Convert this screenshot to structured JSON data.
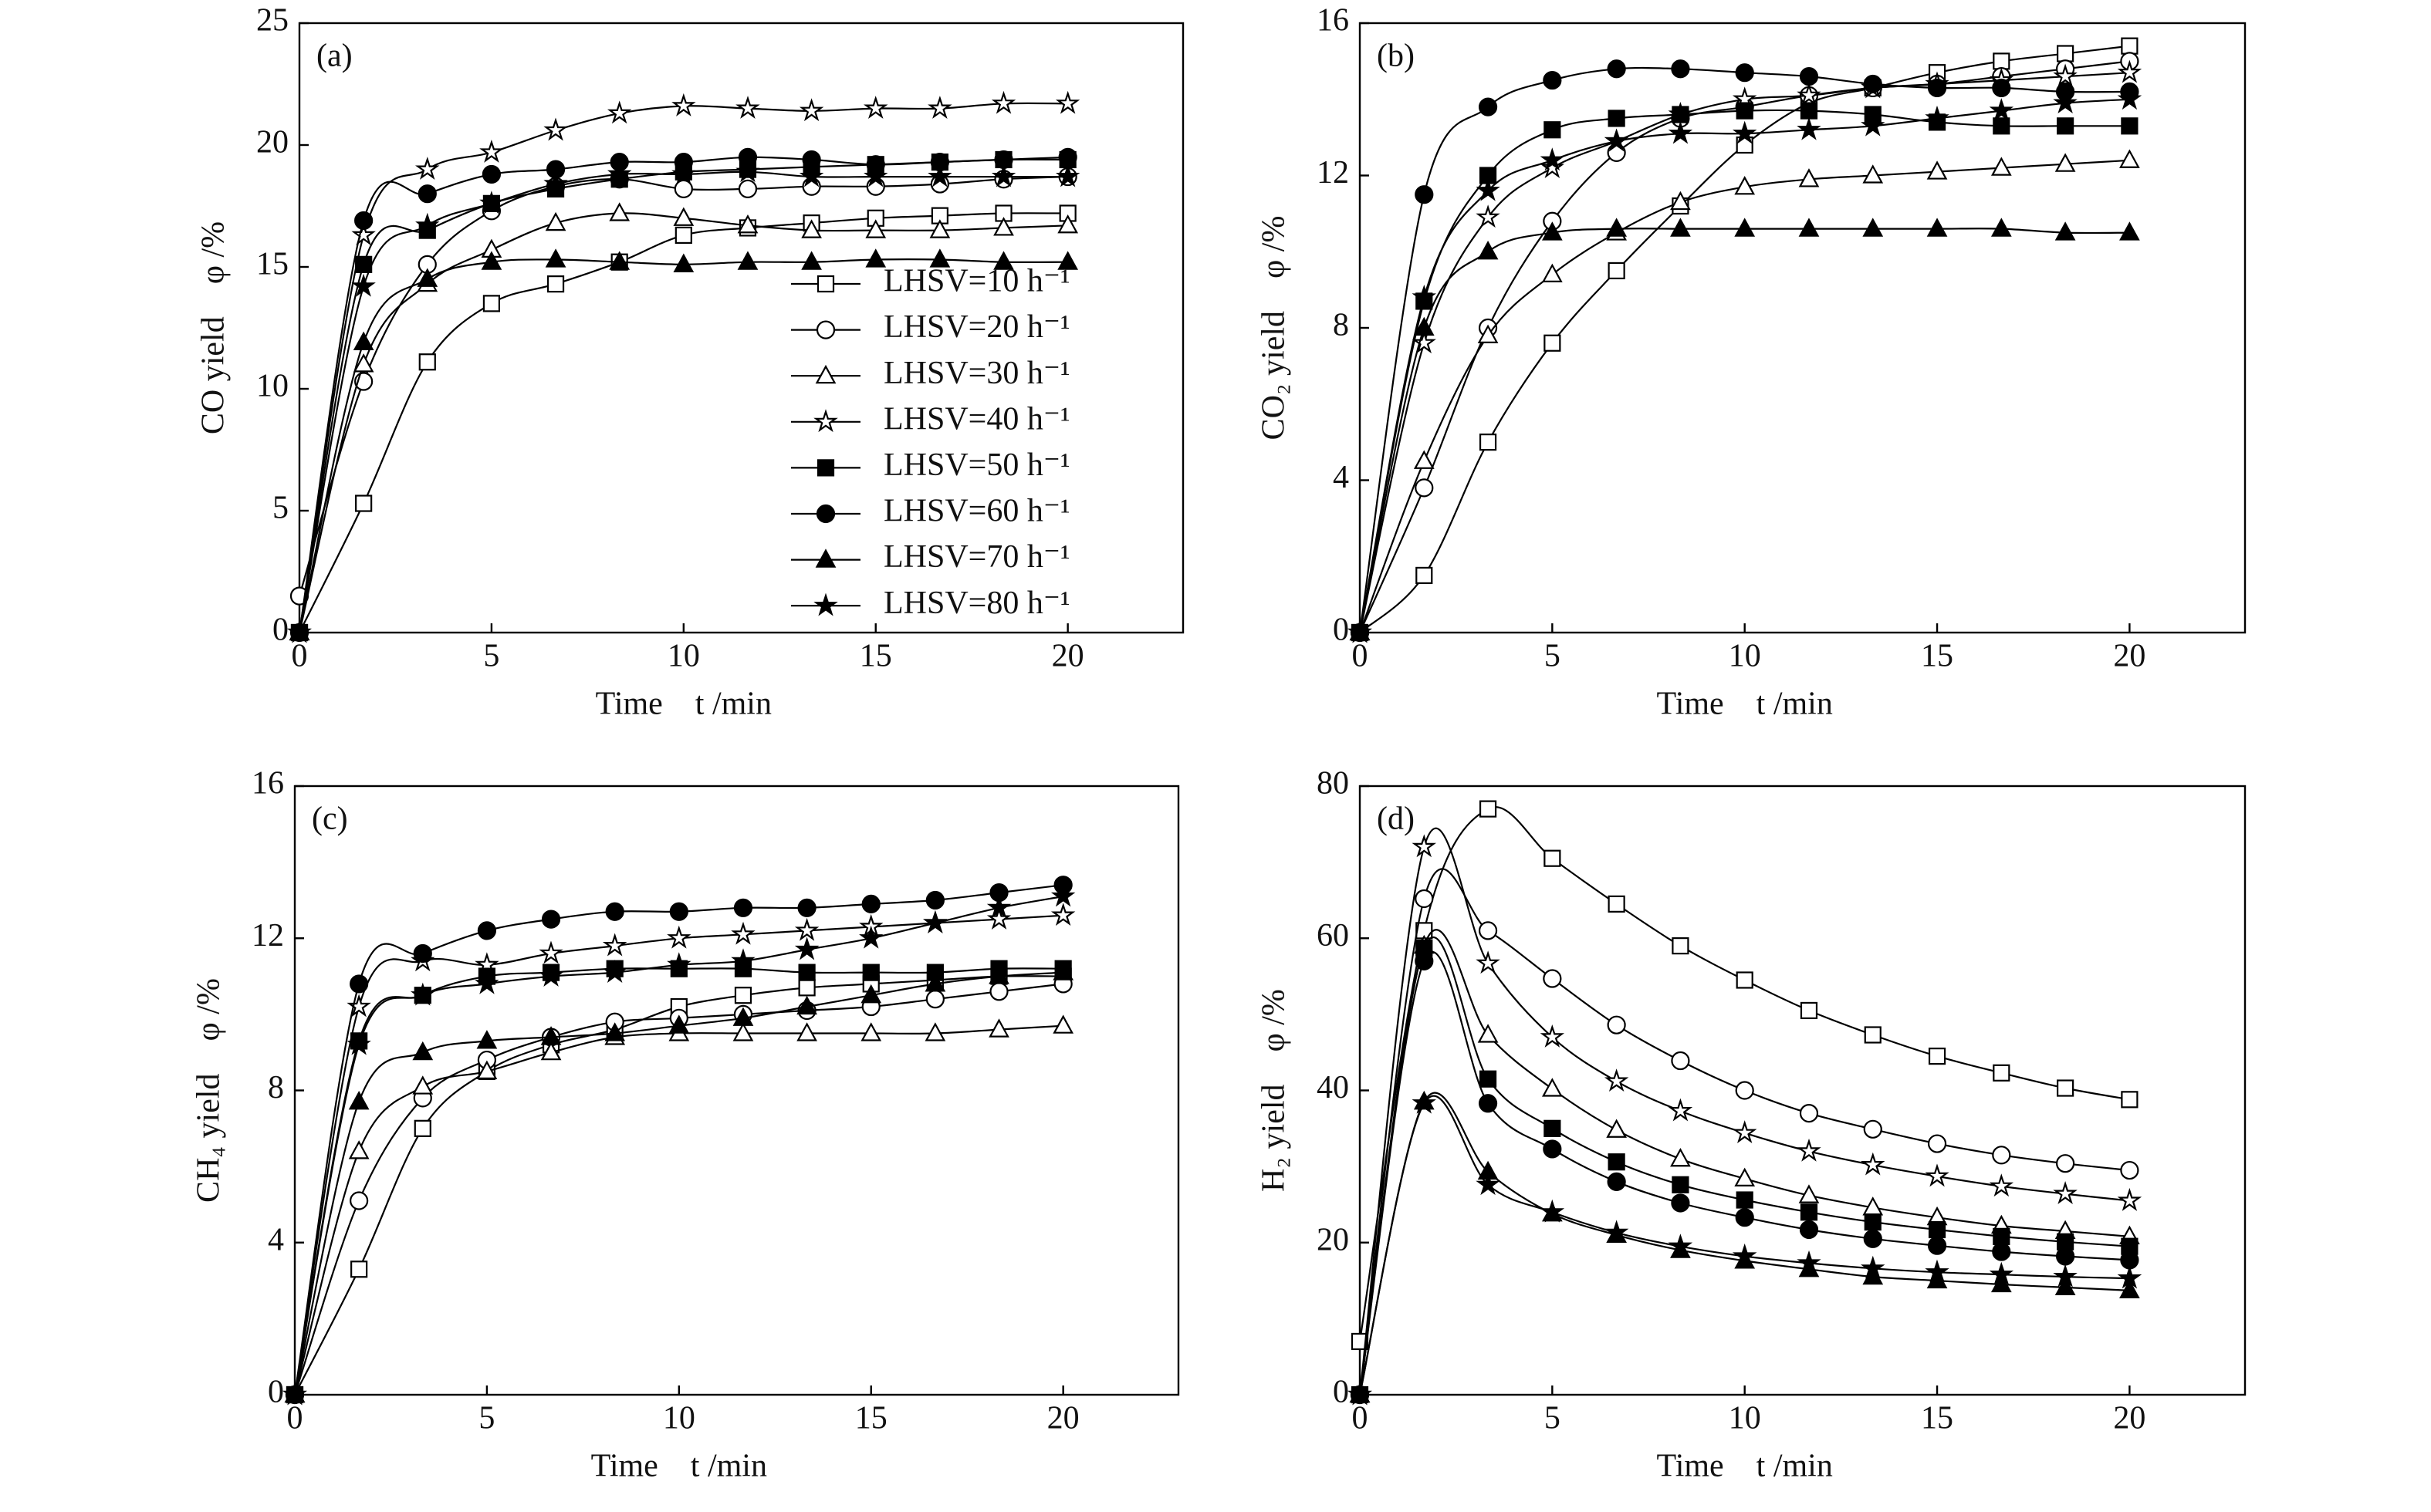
{
  "chart_data": [
    {
      "type": "line",
      "title": "(a)",
      "xlabel": "Time    t /min",
      "ylabel": "CO yield    φ /%",
      "color": "#000000",
      "legend": "right",
      "x": [
        0,
        1.67,
        3.33,
        5,
        6.67,
        8.33,
        10,
        11.67,
        13.33,
        15,
        16.67,
        18.33,
        20
      ],
      "xlim": [
        0,
        23
      ],
      "xticks": [
        0,
        5,
        10,
        15,
        20
      ],
      "ylim": [
        0,
        25
      ],
      "yticks": [
        0,
        5,
        10,
        15,
        20,
        25
      ],
      "series": [
        {
          "name": "LHSV=10 h⁻¹",
          "marker": "square",
          "filled": false,
          "values": [
            0,
            5.3,
            11.1,
            13.5,
            14.3,
            15.2,
            16.3,
            16.6,
            16.8,
            17.0,
            17.1,
            17.2,
            17.2
          ]
        },
        {
          "name": "LHSV=20 h⁻¹",
          "marker": "circle",
          "filled": false,
          "values": [
            1.5,
            10.3,
            15.1,
            17.3,
            18.3,
            18.6,
            18.2,
            18.2,
            18.3,
            18.3,
            18.4,
            18.6,
            18.7
          ]
        },
        {
          "name": "LHSV=30 h⁻¹",
          "marker": "triangle",
          "filled": false,
          "values": [
            0,
            11,
            14.3,
            15.7,
            16.8,
            17.2,
            17.0,
            16.7,
            16.5,
            16.5,
            16.5,
            16.6,
            16.7
          ]
        },
        {
          "name": "LHSV=40 h⁻¹",
          "marker": "star",
          "filled": false,
          "values": [
            0,
            16.3,
            19.0,
            19.7,
            20.6,
            21.3,
            21.6,
            21.5,
            21.4,
            21.5,
            21.5,
            21.7,
            21.7
          ]
        },
        {
          "name": "LHSV=50 h⁻¹",
          "marker": "square",
          "filled": true,
          "values": [
            0,
            15.1,
            16.5,
            17.6,
            18.2,
            18.6,
            18.9,
            19.0,
            19.1,
            19.2,
            19.3,
            19.4,
            19.4
          ]
        },
        {
          "name": "LHSV=60 h⁻¹",
          "marker": "circle",
          "filled": true,
          "values": [
            0,
            16.9,
            18.0,
            18.8,
            19.0,
            19.3,
            19.3,
            19.5,
            19.4,
            19.2,
            19.3,
            19.4,
            19.5
          ]
        },
        {
          "name": "LHSV=70 h⁻¹",
          "marker": "triangle",
          "filled": true,
          "values": [
            0,
            11.9,
            14.5,
            15.2,
            15.3,
            15.2,
            15.1,
            15.2,
            15.2,
            15.3,
            15.3,
            15.2,
            15.2
          ]
        },
        {
          "name": "LHSV=80 h⁻¹",
          "marker": "star",
          "filled": true,
          "values": [
            0,
            14.2,
            16.7,
            17.6,
            18.4,
            18.8,
            18.8,
            18.9,
            18.7,
            18.7,
            18.7,
            18.7,
            18.7
          ]
        }
      ]
    },
    {
      "type": "line",
      "title": "(b)",
      "xlabel": "Time    t /min",
      "ylabel": "CO₂ yield    φ /%",
      "color": "#000000",
      "x": [
        0,
        1.67,
        3.33,
        5,
        6.67,
        8.33,
        10,
        11.67,
        13.33,
        15,
        16.67,
        18.33,
        20
      ],
      "xlim": [
        0,
        23
      ],
      "xticks": [
        0,
        5,
        10,
        15,
        20
      ],
      "ylim": [
        0,
        16
      ],
      "yticks": [
        0,
        4,
        8,
        12,
        16
      ],
      "series": [
        {
          "marker": "square",
          "filled": false,
          "values": [
            0,
            1.5,
            5.0,
            7.6,
            9.5,
            11.2,
            12.8,
            13.9,
            14.3,
            14.7,
            15.0,
            15.2,
            15.4
          ]
        },
        {
          "marker": "circle",
          "filled": false,
          "values": [
            0,
            3.8,
            8.0,
            10.8,
            12.6,
            13.5,
            13.8,
            14.1,
            14.3,
            14.4,
            14.6,
            14.8,
            15.0
          ]
        },
        {
          "marker": "triangle",
          "filled": false,
          "values": [
            0,
            4.5,
            7.8,
            9.4,
            10.5,
            11.3,
            11.7,
            11.9,
            12.0,
            12.1,
            12.2,
            12.3,
            12.4
          ]
        },
        {
          "marker": "star",
          "filled": false,
          "values": [
            0,
            7.6,
            10.9,
            12.2,
            12.9,
            13.6,
            14.0,
            14.1,
            14.3,
            14.4,
            14.5,
            14.6,
            14.7
          ]
        },
        {
          "marker": "square",
          "filled": true,
          "values": [
            0,
            8.7,
            12.0,
            13.2,
            13.5,
            13.6,
            13.7,
            13.7,
            13.6,
            13.4,
            13.3,
            13.3,
            13.3
          ]
        },
        {
          "marker": "circle",
          "filled": true,
          "values": [
            0,
            11.5,
            13.8,
            14.5,
            14.8,
            14.8,
            14.7,
            14.6,
            14.4,
            14.3,
            14.3,
            14.2,
            14.2
          ]
        },
        {
          "marker": "triangle",
          "filled": true,
          "values": [
            0,
            8.0,
            10.0,
            10.5,
            10.6,
            10.6,
            10.6,
            10.6,
            10.6,
            10.6,
            10.6,
            10.5,
            10.5
          ]
        },
        {
          "marker": "star",
          "filled": true,
          "values": [
            0,
            8.8,
            11.6,
            12.4,
            12.9,
            13.1,
            13.1,
            13.2,
            13.3,
            13.5,
            13.7,
            13.9,
            14.0
          ]
        }
      ]
    },
    {
      "type": "line",
      "title": "(c)",
      "xlabel": "Time    t /min",
      "ylabel": "CH₄ yield    φ /%",
      "color": "#000000",
      "x": [
        0,
        1.67,
        3.33,
        5,
        6.67,
        8.33,
        10,
        11.67,
        13.33,
        15,
        16.67,
        18.33,
        20
      ],
      "xlim": [
        0,
        23
      ],
      "xticks": [
        0,
        5,
        10,
        15,
        20
      ],
      "ylim": [
        0,
        16
      ],
      "yticks": [
        0,
        4,
        8,
        12,
        16
      ],
      "series": [
        {
          "marker": "square",
          "filled": false,
          "values": [
            0,
            3.3,
            7.0,
            8.5,
            9.2,
            9.6,
            10.2,
            10.5,
            10.7,
            10.8,
            10.9,
            11.0,
            11.0
          ]
        },
        {
          "marker": "circle",
          "filled": false,
          "values": [
            0,
            5.1,
            7.8,
            8.8,
            9.4,
            9.8,
            9.9,
            10.0,
            10.1,
            10.2,
            10.4,
            10.6,
            10.8
          ]
        },
        {
          "marker": "triangle",
          "filled": false,
          "values": [
            0,
            6.4,
            8.1,
            8.5,
            9.0,
            9.4,
            9.5,
            9.5,
            9.5,
            9.5,
            9.5,
            9.6,
            9.7
          ]
        },
        {
          "marker": "star",
          "filled": false,
          "values": [
            0,
            10.2,
            11.4,
            11.3,
            11.6,
            11.8,
            12.0,
            12.1,
            12.2,
            12.3,
            12.4,
            12.5,
            12.6
          ]
        },
        {
          "marker": "square",
          "filled": true,
          "values": [
            0,
            9.3,
            10.5,
            11.0,
            11.1,
            11.2,
            11.2,
            11.2,
            11.1,
            11.1,
            11.1,
            11.2,
            11.2
          ]
        },
        {
          "marker": "circle",
          "filled": true,
          "values": [
            0,
            10.8,
            11.6,
            12.2,
            12.5,
            12.7,
            12.7,
            12.8,
            12.8,
            12.9,
            13.0,
            13.2,
            13.4
          ]
        },
        {
          "marker": "triangle",
          "filled": true,
          "values": [
            0,
            7.7,
            9.0,
            9.3,
            9.4,
            9.5,
            9.7,
            9.9,
            10.2,
            10.5,
            10.8,
            11.0,
            11.1
          ]
        },
        {
          "marker": "star",
          "filled": true,
          "values": [
            0,
            9.2,
            10.5,
            10.8,
            11.0,
            11.1,
            11.3,
            11.4,
            11.7,
            12.0,
            12.4,
            12.8,
            13.1
          ]
        }
      ]
    },
    {
      "type": "line",
      "title": "(d)",
      "xlabel": "Time    t /min",
      "ylabel": "H₂ yield    φ /%",
      "color": "#000000",
      "x": [
        0,
        1.67,
        3.33,
        5,
        6.67,
        8.33,
        10,
        11.67,
        13.33,
        15,
        16.67,
        18.33,
        20
      ],
      "xlim": [
        0,
        23
      ],
      "xticks": [
        0,
        5,
        10,
        15,
        20
      ],
      "ylim": [
        0,
        80
      ],
      "yticks": [
        0,
        20,
        40,
        60,
        80
      ],
      "series": [
        {
          "marker": "square",
          "filled": false,
          "values": [
            7,
            61,
            77,
            70.5,
            64.5,
            59,
            54.5,
            50.5,
            47.3,
            44.5,
            42.3,
            40.3,
            38.8
          ]
        },
        {
          "marker": "circle",
          "filled": false,
          "values": [
            0,
            65.2,
            61,
            54.7,
            48.6,
            43.9,
            40,
            37,
            34.9,
            33,
            31.5,
            30.4,
            29.5
          ]
        },
        {
          "marker": "triangle",
          "filled": false,
          "values": [
            0,
            59,
            47.3,
            40.2,
            34.8,
            31,
            28.4,
            26.2,
            24.6,
            23.3,
            22.2,
            21.5,
            20.8
          ]
        },
        {
          "marker": "star",
          "filled": false,
          "values": [
            0,
            72.0,
            56.7,
            47.0,
            41.2,
            37.3,
            34.4,
            32.0,
            30.2,
            28.7,
            27.4,
            26.4,
            25.5
          ]
        },
        {
          "marker": "square",
          "filled": true,
          "values": [
            0,
            58.7,
            41.5,
            35.0,
            30.6,
            27.6,
            25.6,
            24.0,
            22.7,
            21.7,
            20.8,
            20.1,
            19.5
          ]
        },
        {
          "marker": "circle",
          "filled": true,
          "values": [
            0,
            57.0,
            38.3,
            32.3,
            28.0,
            25.2,
            23.3,
            21.7,
            20.5,
            19.6,
            18.8,
            18.2,
            17.7
          ]
        },
        {
          "marker": "triangle",
          "filled": true,
          "values": [
            0,
            38.5,
            29.3,
            23.8,
            21.0,
            19.0,
            17.6,
            16.5,
            15.5,
            15.0,
            14.5,
            14.1,
            13.7
          ]
        },
        {
          "marker": "star",
          "filled": true,
          "values": [
            0,
            38.3,
            27.6,
            24.0,
            21.3,
            19.5,
            18.2,
            17.3,
            16.6,
            16.1,
            15.8,
            15.5,
            15.3
          ]
        }
      ]
    }
  ]
}
